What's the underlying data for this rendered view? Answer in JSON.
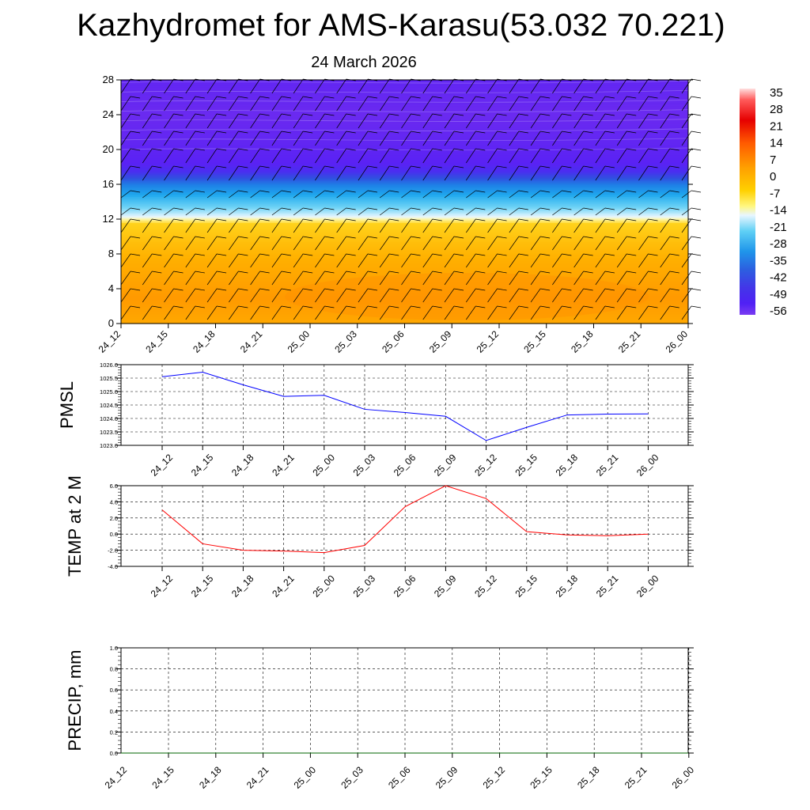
{
  "page": {
    "title": "Kazhydromet for AMS-Karasu(53.032 70.221)",
    "subtitle": "24 March 2026"
  },
  "colors": {
    "pmsl_line": "#0000ff",
    "temp_line": "#ff0000",
    "precip_line": "#006400",
    "grid": "#000000"
  },
  "chart_data": [
    {
      "type": "heatmap",
      "id": "cross-section",
      "title": "",
      "xlabel": "",
      "ylabel": "",
      "x_tick_labels": [
        "24_12",
        "24_15",
        "24_18",
        "24_21",
        "25_00",
        "25_03",
        "25_06",
        "25_09",
        "25_12",
        "25_15",
        "25_18",
        "25_21",
        "26_00"
      ],
      "ylim": [
        0,
        28
      ],
      "y_ticks": [
        0,
        4,
        8,
        12,
        16,
        20,
        24,
        28
      ],
      "temperature_profile": [
        {
          "height": 0,
          "value": 4
        },
        {
          "height": 3,
          "value": 6
        },
        {
          "height": 6,
          "value": 4
        },
        {
          "height": 9,
          "value": 2
        },
        {
          "height": 11.5,
          "value": 0
        },
        {
          "height": 12,
          "value": -12
        },
        {
          "height": 13,
          "value": -18
        },
        {
          "height": 14.5,
          "value": -26
        },
        {
          "height": 16,
          "value": -36
        },
        {
          "height": 17.5,
          "value": -52
        },
        {
          "height": 18.5,
          "value": -58
        },
        {
          "height": 21,
          "value": -60
        },
        {
          "height": 24,
          "value": -62
        },
        {
          "height": 28,
          "value": -60
        }
      ],
      "colorbar": {
        "labels": [
          "35",
          "28",
          "21",
          "14",
          "7",
          "0",
          "-7",
          "-14",
          "-21",
          "-28",
          "-35",
          "-42",
          "-49",
          "-56"
        ]
      },
      "wind_barbs": true
    },
    {
      "type": "line",
      "id": "pmsl",
      "ylabel": "PMSL",
      "ylim": [
        1023.0,
        1026.0
      ],
      "y_tick_labels": [
        "1026.0",
        "1025.5",
        "1025.0",
        "1024.5",
        "1024.0",
        "1023.5",
        "1023.0"
      ],
      "x_tick_labels": [
        "24_12",
        "24_15",
        "24_18",
        "24_21",
        "25_00",
        "25_03",
        "25_06",
        "25_09",
        "25_12",
        "25_15",
        "25_18",
        "25_21",
        "26_00"
      ],
      "values": [
        1025.55,
        1025.72,
        1025.25,
        1024.82,
        1024.86,
        1024.34,
        1024.22,
        1024.08,
        1023.18,
        1023.67,
        1024.13,
        1024.16,
        1024.17
      ]
    },
    {
      "type": "line",
      "id": "temp",
      "ylabel": "TEMP at 2 M",
      "ylim": [
        -4.0,
        6.0
      ],
      "y_tick_labels": [
        "6.0",
        "4.0",
        "2.0",
        "0.0",
        "-2.0",
        "-4.0"
      ],
      "x_tick_labels": [
        "24_12",
        "24_15",
        "24_18",
        "24_21",
        "25_00",
        "25_03",
        "25_06",
        "25_09",
        "25_12",
        "25_15",
        "25_18",
        "25_21",
        "26_00"
      ],
      "values": [
        3.0,
        -1.2,
        -2.0,
        -2.1,
        -2.3,
        -1.4,
        3.4,
        6.0,
        4.4,
        0.3,
        -0.1,
        -0.2,
        0.0
      ]
    },
    {
      "type": "line",
      "id": "precip",
      "ylabel": "PRECIP, mm",
      "ylim": [
        0.0,
        1.0
      ],
      "y_tick_labels": [
        "1.0",
        "0.8",
        "0.6",
        "0.4",
        "0.2",
        "0.0"
      ],
      "x_tick_labels": [
        "24_12",
        "24_15",
        "24_18",
        "24_21",
        "25_00",
        "25_03",
        "25_06",
        "25_09",
        "25_12",
        "25_15",
        "25_18",
        "25_21",
        "26_00"
      ],
      "values": [
        0,
        0,
        0,
        0,
        0,
        0,
        0,
        0,
        0,
        0,
        0,
        0,
        0
      ]
    }
  ]
}
